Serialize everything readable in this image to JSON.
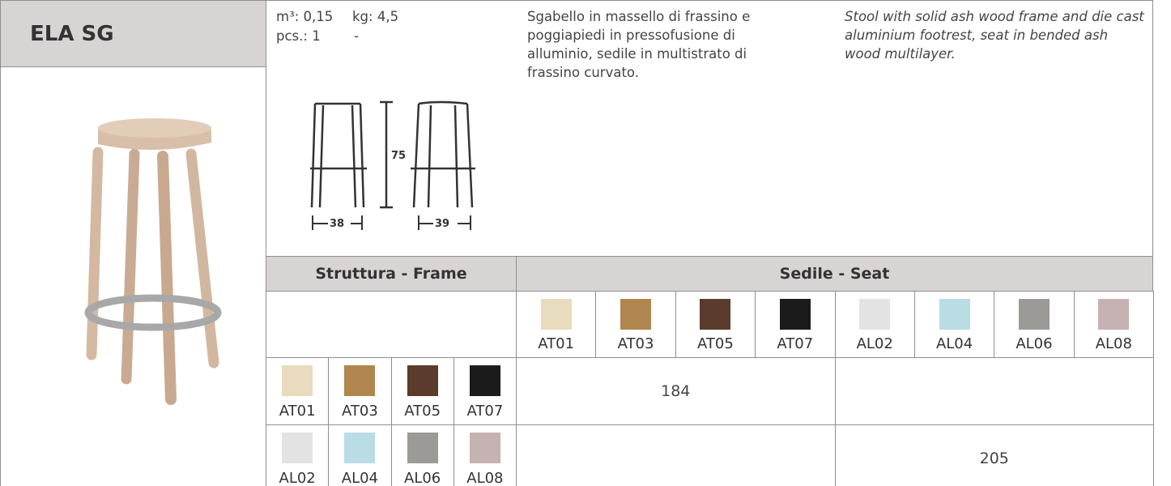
{
  "header": {
    "title": "ELA SG"
  },
  "specs": {
    "volume": "m³: 0,15",
    "weight": "kg: 4,5",
    "pieces": "pcs.: 1",
    "pieces_note": "-"
  },
  "description": {
    "it": "Sgabello in massello di frassino e poggiapiedi in pressofusione di alluminio, sedile in multistrato di frassino curvato.",
    "en": "Stool with solid ash wood frame and die cast aluminium footrest, seat in bended ash wood multilayer."
  },
  "drawing": {
    "height": "75",
    "width_front": "38",
    "width_side": "39"
  },
  "table": {
    "frame_header": "Struttura - Frame",
    "seat_header": "Sedile - Seat",
    "seat_finishes": [
      {
        "code": "AT01",
        "color": "#e9dbbd"
      },
      {
        "code": "AT03",
        "color": "#b0864e"
      },
      {
        "code": "AT05",
        "color": "#5b3b2b"
      },
      {
        "code": "AT07",
        "color": "#1b1b1b"
      },
      {
        "code": "AL02",
        "color": "#e3e3e3"
      },
      {
        "code": "AL04",
        "color": "#b9dce5"
      },
      {
        "code": "AL06",
        "color": "#9b9a97"
      },
      {
        "code": "AL08",
        "color": "#c6b2b2"
      }
    ],
    "frame_rows": [
      {
        "finishes": [
          {
            "code": "AT01",
            "color": "#e9dbbd"
          },
          {
            "code": "AT03",
            "color": "#b0864e"
          },
          {
            "code": "AT05",
            "color": "#5b3b2b"
          },
          {
            "code": "AT07",
            "color": "#1b1b1b"
          }
        ],
        "price": "184"
      },
      {
        "finishes": [
          {
            "code": "AL02",
            "color": "#e3e3e3"
          },
          {
            "code": "AL04",
            "color": "#b9dce5"
          },
          {
            "code": "AL06",
            "color": "#9b9a97"
          },
          {
            "code": "AL08",
            "color": "#c6b2b2"
          }
        ],
        "price": "205"
      }
    ]
  }
}
